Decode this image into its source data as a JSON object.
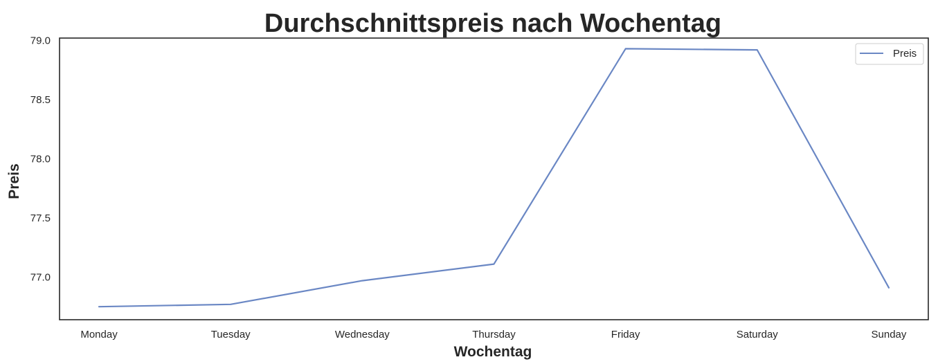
{
  "chart_data": {
    "type": "line",
    "title": "Durchschnittspreis nach Wochentag",
    "xlabel": "Wochentag",
    "ylabel": "Preis",
    "categories": [
      "Monday",
      "Tuesday",
      "Wednesday",
      "Thursday",
      "Friday",
      "Saturday",
      "Sunday"
    ],
    "series": [
      {
        "name": "Preis",
        "values": [
          76.75,
          76.77,
          76.97,
          77.11,
          78.93,
          78.92,
          76.91
        ],
        "color": "#6a87c4"
      }
    ],
    "ylim": [
      76.64,
      79.02
    ],
    "yticks": [
      "77.0",
      "77.5",
      "78.0",
      "78.5",
      "79.0"
    ],
    "grid": false,
    "legend_position": "top-right"
  }
}
